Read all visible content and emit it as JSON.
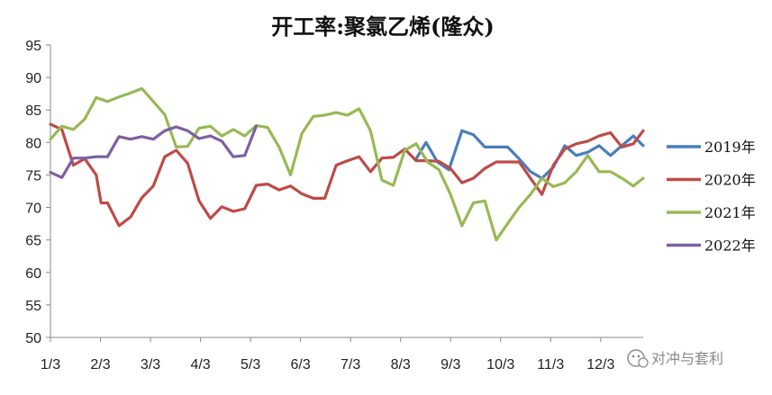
{
  "chart_data": {
    "type": "line",
    "title": "开工率:聚氯乙烯(隆众)",
    "xlabel": "",
    "ylabel": "",
    "ylim": [
      50,
      95
    ],
    "y_ticks": [
      95,
      90,
      85,
      80,
      75,
      70,
      65,
      60,
      55,
      50
    ],
    "x_ticks": [
      "1/3",
      "2/3",
      "3/3",
      "4/3",
      "5/3",
      "6/3",
      "7/3",
      "8/3",
      "9/3",
      "10/3",
      "11/3",
      "12/3"
    ],
    "x_range_days": [
      0,
      363
    ],
    "grid": false,
    "legend_position": "right",
    "series": [
      {
        "name": "2019年",
        "color": "#4a7ebb",
        "x_days": [
          224,
          230,
          237,
          244,
          252,
          259,
          266,
          273,
          280,
          287,
          294,
          301,
          308,
          315,
          322,
          329,
          336,
          343,
          350,
          357,
          363
        ],
        "values": [
          77.5,
          80,
          77,
          75.8,
          81.8,
          81.2,
          79.3,
          79.3,
          79.3,
          77.5,
          75.5,
          74.5,
          76.2,
          79.5,
          78,
          78.5,
          79.5,
          78,
          79.5,
          81,
          79.5
        ]
      },
      {
        "name": "2020年",
        "color": "#be4b48",
        "x_days": [
          0,
          7,
          14,
          21,
          28,
          31,
          35,
          42,
          49,
          56,
          63,
          70,
          77,
          84,
          91,
          98,
          105,
          112,
          119,
          126,
          133,
          140,
          147,
          154,
          161,
          168,
          175,
          182,
          189,
          196,
          203,
          210,
          217,
          224,
          231,
          238,
          245,
          252,
          259,
          266,
          273,
          280,
          287,
          294,
          301,
          308,
          315,
          322,
          329,
          336,
          343,
          350,
          357,
          363
        ],
        "values": [
          82.8,
          82,
          76.5,
          77.5,
          75,
          70.7,
          70.7,
          67.2,
          68.5,
          71.5,
          73.3,
          77.8,
          78.8,
          76.8,
          71,
          68.3,
          70.1,
          69.4,
          69.8,
          73.4,
          73.6,
          72.7,
          73.3,
          72.1,
          71.4,
          71.4,
          76.5,
          77.2,
          77.8,
          75.5,
          77.6,
          77.7,
          79,
          77.2,
          77.2,
          77.1,
          76,
          73.8,
          74.5,
          76,
          77,
          77,
          77,
          74.5,
          72,
          76.5,
          79,
          79.8,
          80.2,
          81,
          81.5,
          79.3,
          79.8,
          81.8
        ]
      },
      {
        "name": "2021年",
        "color": "#98b954",
        "x_days": [
          0,
          7,
          14,
          21,
          28,
          35,
          42,
          49,
          56,
          63,
          70,
          77,
          84,
          91,
          98,
          105,
          112,
          119,
          126,
          133,
          140,
          147,
          154,
          161,
          168,
          175,
          182,
          189,
          196,
          203,
          210,
          217,
          224,
          231,
          238,
          245,
          252,
          259,
          266,
          273,
          280,
          287,
          294,
          301,
          308,
          315,
          322,
          329,
          336,
          343,
          350,
          357,
          363
        ],
        "values": [
          80.5,
          82.5,
          82,
          83.6,
          86.9,
          86.3,
          87,
          87.6,
          88.3,
          86.3,
          84.3,
          79.3,
          79.4,
          82.2,
          82.5,
          81,
          82,
          81,
          82.6,
          82.3,
          79.3,
          75,
          81.4,
          84,
          84.2,
          84.6,
          84.2,
          85.2,
          81.8,
          74.2,
          73.4,
          78.8,
          79.8,
          77,
          75.8,
          72,
          67.2,
          70.7,
          71,
          65,
          67.5,
          70,
          72,
          74.5,
          73.2,
          73.8,
          75.5,
          78,
          75.5,
          75.5,
          74.5,
          73.3,
          74.5
        ]
      },
      {
        "name": "2022年",
        "color": "#7d60a0",
        "x_days": [
          0,
          7,
          14,
          21,
          28,
          35,
          42,
          49,
          56,
          63,
          70,
          77,
          84,
          91,
          98,
          105,
          112,
          119,
          126
        ],
        "values": [
          75.4,
          74.6,
          77.6,
          77.6,
          77.8,
          77.8,
          80.9,
          80.5,
          80.9,
          80.5,
          81.8,
          82.4,
          81.8,
          80.6,
          81,
          80.2,
          77.8,
          78,
          82.5
        ]
      }
    ]
  },
  "watermark": {
    "text": "对冲与套利",
    "icon": "wechat-icon"
  }
}
